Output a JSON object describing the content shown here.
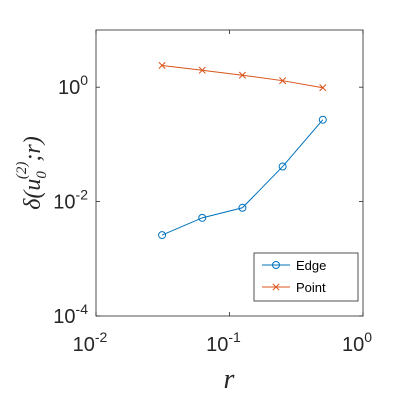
{
  "chart_data": {
    "type": "line",
    "x_scale": "log",
    "y_scale": "log",
    "xlim": [
      0.01,
      1
    ],
    "ylim": [
      0.0001,
      10
    ],
    "grid": false,
    "legend_position": "bottom-right",
    "xlabel": "r",
    "ylabel": "δ(u0(2);r)",
    "x_ticks": [
      {
        "value": 0.01,
        "base": "10",
        "exp": "-2"
      },
      {
        "value": 0.1,
        "base": "10",
        "exp": "-1"
      },
      {
        "value": 1,
        "base": "10",
        "exp": "0"
      }
    ],
    "y_ticks": [
      {
        "value": 0.0001,
        "base": "10",
        "exp": "-4"
      },
      {
        "value": 0.01,
        "base": "10",
        "exp": "-2"
      },
      {
        "value": 1,
        "base": "10",
        "exp": "0"
      }
    ],
    "series": [
      {
        "name": "Edge",
        "color": "#0072BD",
        "marker": "circle",
        "x": [
          0.03125,
          0.0625,
          0.125,
          0.25,
          0.5
        ],
        "y": [
          0.0026,
          0.0052,
          0.0078,
          0.041,
          0.27
        ]
      },
      {
        "name": "Point",
        "color": "#D95319",
        "marker": "x",
        "x": [
          0.03125,
          0.0625,
          0.125,
          0.25,
          0.5
        ],
        "y": [
          2.4,
          1.98,
          1.62,
          1.3,
          0.98
        ]
      }
    ]
  }
}
